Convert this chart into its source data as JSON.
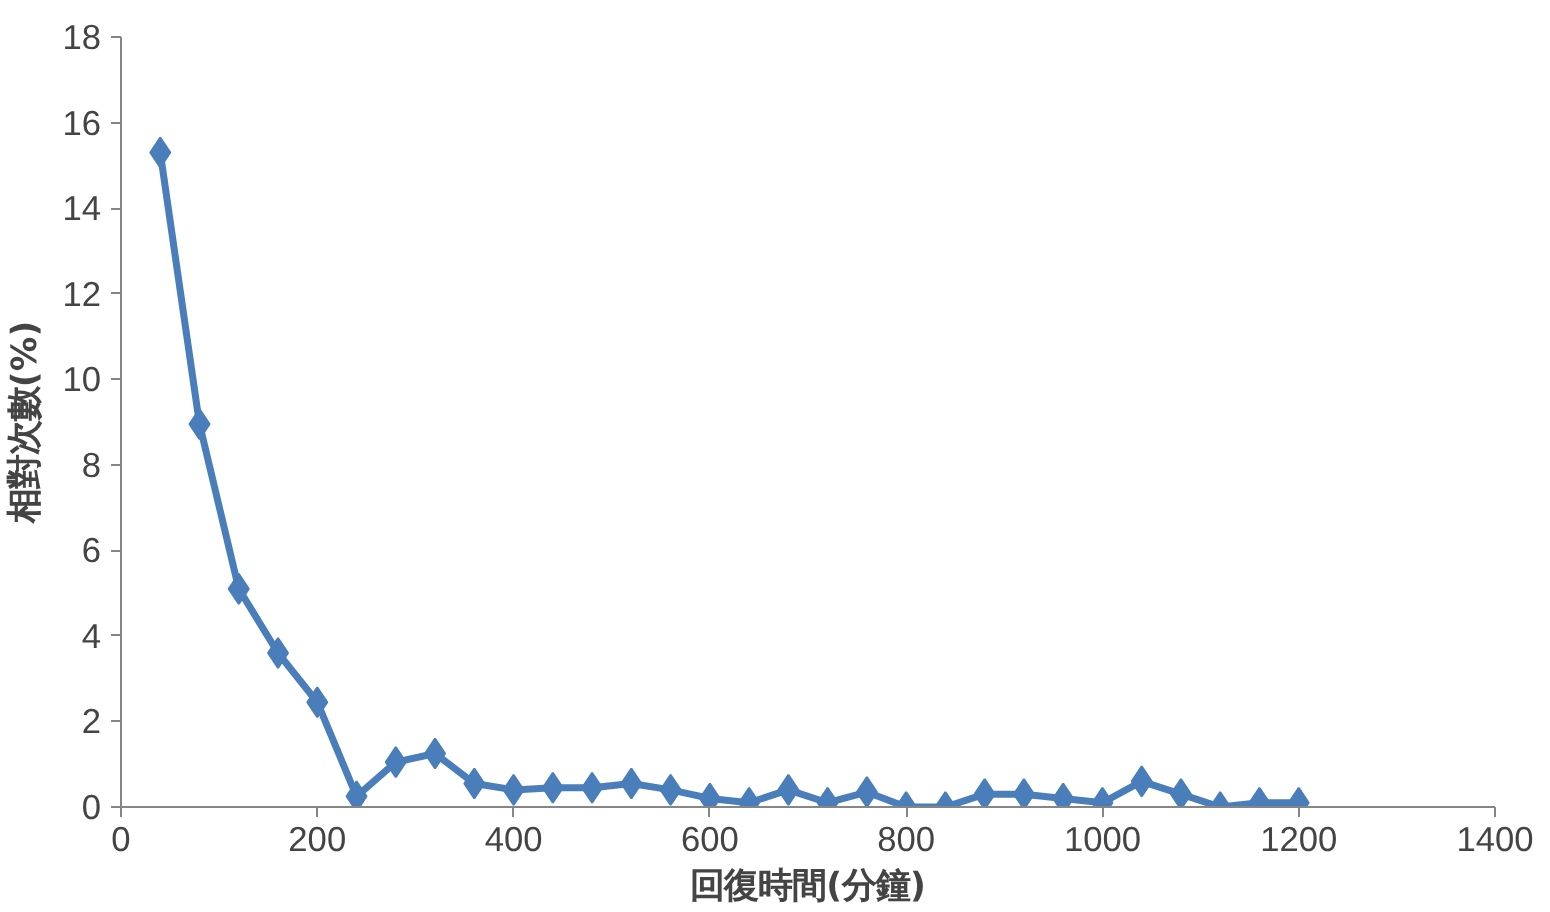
{
  "chart_data": {
    "type": "line",
    "xlabel": "回復時間(分鐘)",
    "ylabel": "相對次數(%)",
    "x": [
      40,
      80,
      120,
      160,
      200,
      240,
      280,
      320,
      360,
      400,
      440,
      480,
      520,
      560,
      600,
      640,
      680,
      720,
      760,
      800,
      840,
      880,
      920,
      960,
      1000,
      1040,
      1080,
      1120,
      1160,
      1200
    ],
    "series": [
      {
        "color": "#4a7ebb",
        "values": [
          15.3,
          8.95,
          5.1,
          3.6,
          2.45,
          0.25,
          1.05,
          1.25,
          0.55,
          0.4,
          0.45,
          0.45,
          0.55,
          0.4,
          0.2,
          0.1,
          0.4,
          0.1,
          0.35,
          0.0,
          0.0,
          0.3,
          0.3,
          0.2,
          0.1,
          0.6,
          0.3,
          0.0,
          0.1,
          0.1
        ]
      }
    ],
    "xlim": [
      0,
      1400
    ],
    "xticks": [
      0,
      200,
      400,
      600,
      800,
      1000,
      1200,
      1400
    ],
    "ylim": [
      0,
      18
    ],
    "yticks": [
      0,
      2,
      4,
      6,
      8,
      10,
      12,
      14,
      16,
      18
    ],
    "grid": false,
    "marker": "diamond",
    "line_style": "solid"
  }
}
